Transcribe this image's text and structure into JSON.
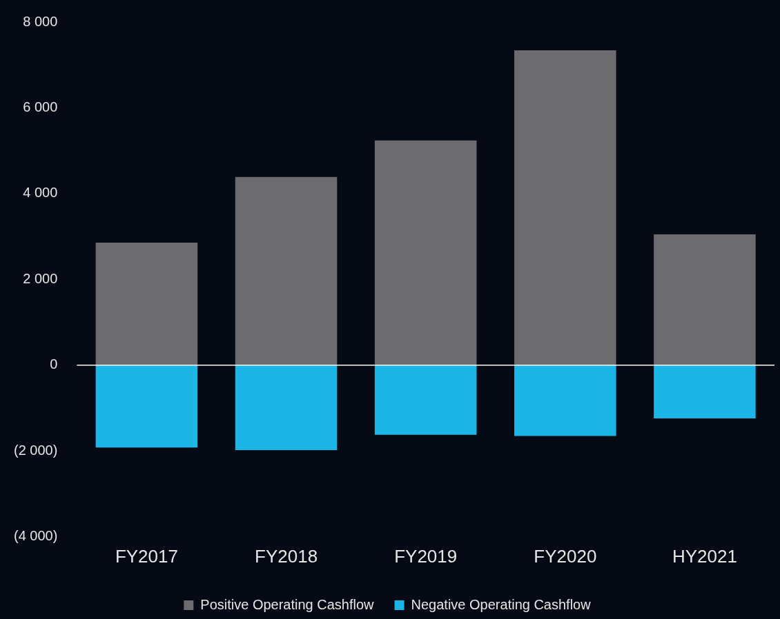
{
  "chart_data": {
    "type": "bar",
    "stacked": true,
    "categories": [
      "FY2017",
      "FY2018",
      "FY2019",
      "FY2020",
      "HY2021"
    ],
    "series": [
      {
        "name": "Positive Operating Cashflow",
        "color": "#6b6b70",
        "values": [
          2860,
          4390,
          5240,
          7340,
          3050
        ]
      },
      {
        "name": "Negative Operating Cashflow",
        "color": "#1bb6e6",
        "values": [
          -1920,
          -1980,
          -1620,
          -1650,
          -1240
        ]
      }
    ],
    "ylim": [
      -4000,
      8000
    ],
    "yticks": [
      {
        "value": -4000,
        "label": "(4 000)"
      },
      {
        "value": -2000,
        "label": "(2 000)"
      },
      0,
      {
        "value": 2000,
        "label": "2 000"
      },
      {
        "value": 4000,
        "label": "4 000"
      },
      {
        "value": 6000,
        "label": "6 000"
      },
      {
        "value": 8000,
        "label": "8 000"
      }
    ],
    "ref_lines": [
      {
        "axis": "y",
        "value": 0,
        "color": "#ffffff"
      }
    ],
    "grid": false,
    "legend": "bottom"
  }
}
